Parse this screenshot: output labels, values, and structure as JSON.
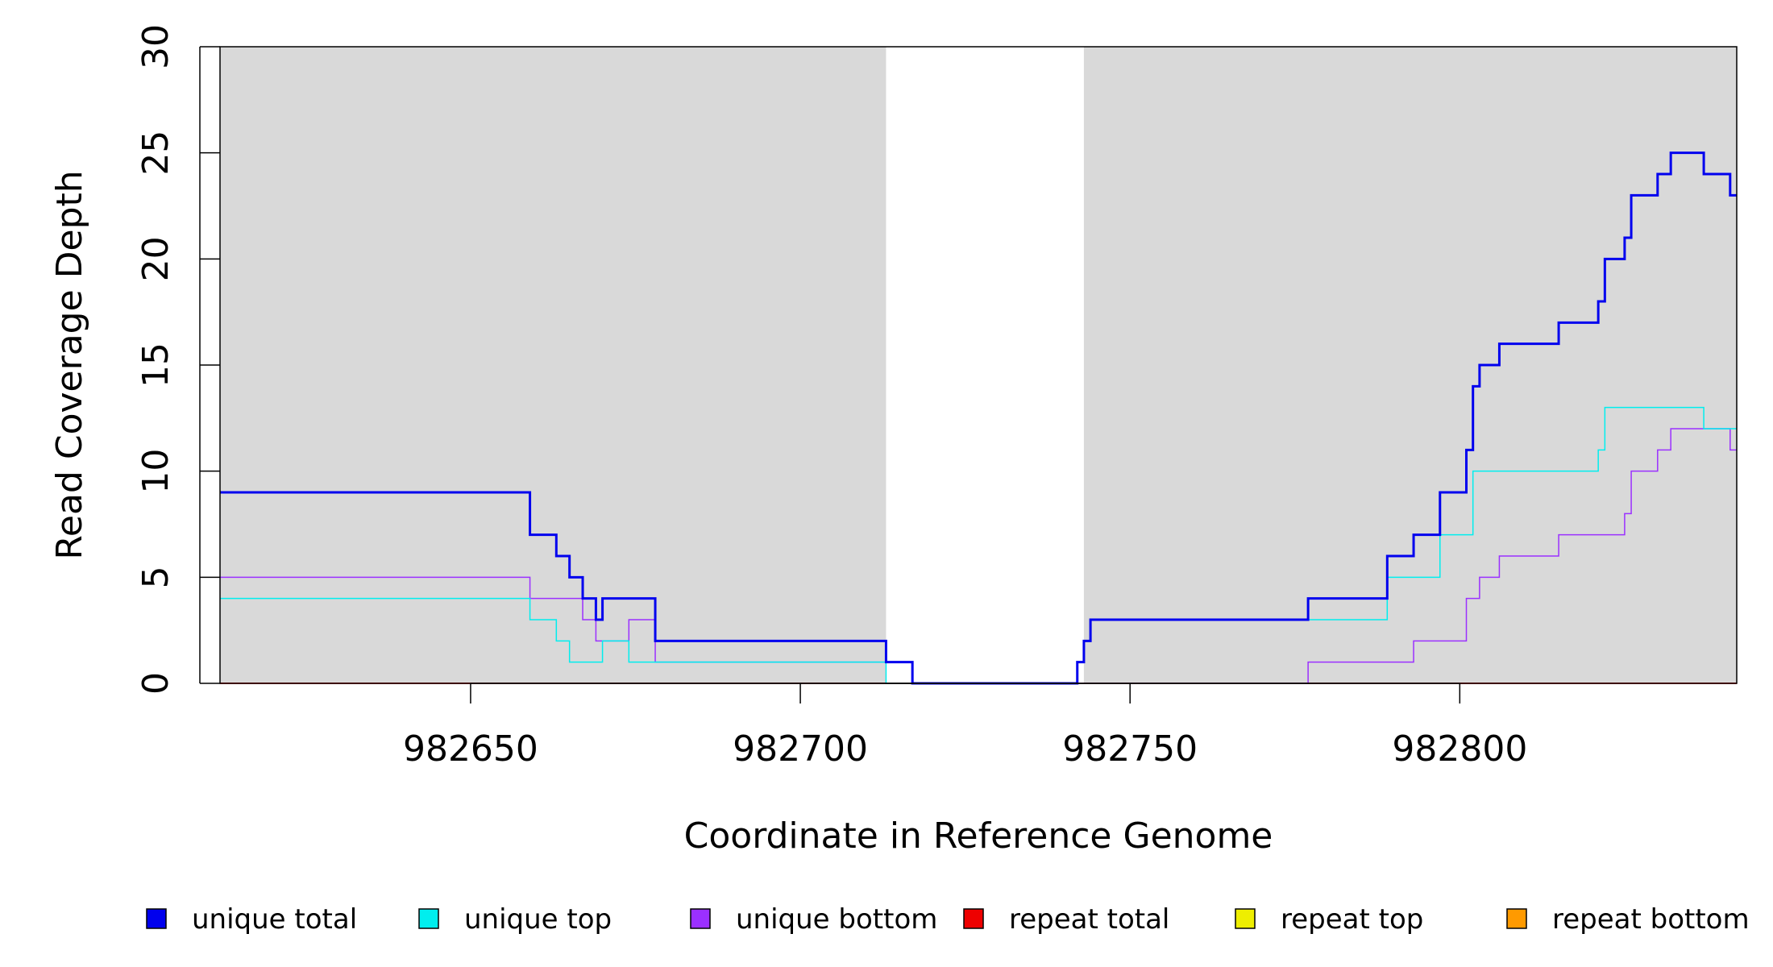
{
  "chart_data": {
    "type": "line",
    "step": true,
    "title": "",
    "xlabel": "Coordinate in Reference Genome",
    "ylabel": "Read Coverage Depth",
    "xlim": [
      982612,
      982842
    ],
    "ylim": [
      0,
      30
    ],
    "x_ticks": [
      982650,
      982700,
      982750,
      982800
    ],
    "y_ticks": [
      0,
      5,
      10,
      15,
      20,
      25,
      30
    ],
    "shaded_regions": [
      {
        "from": 982612,
        "to": 982713,
        "color": "#d9d9d9"
      },
      {
        "from": 982743,
        "to": 982842,
        "color": "#d9d9d9"
      }
    ],
    "legend_position": "bottom",
    "series": [
      {
        "name": "unique total",
        "color": "#0000ee",
        "width": 3,
        "points": [
          [
            982612,
            9
          ],
          [
            982659,
            9
          ],
          [
            982659,
            7
          ],
          [
            982663,
            7
          ],
          [
            982663,
            6
          ],
          [
            982665,
            6
          ],
          [
            982665,
            5
          ],
          [
            982667,
            5
          ],
          [
            982667,
            4
          ],
          [
            982669,
            4
          ],
          [
            982669,
            3
          ],
          [
            982670,
            3
          ],
          [
            982670,
            4
          ],
          [
            982678,
            4
          ],
          [
            982678,
            2
          ],
          [
            982713,
            2
          ],
          [
            982713,
            1
          ],
          [
            982717,
            1
          ],
          [
            982717,
            0
          ],
          [
            982742,
            0
          ],
          [
            982742,
            1
          ],
          [
            982743,
            1
          ],
          [
            982743,
            2
          ],
          [
            982744,
            2
          ],
          [
            982744,
            3
          ],
          [
            982777,
            3
          ],
          [
            982777,
            4
          ],
          [
            982789,
            4
          ],
          [
            982789,
            6
          ],
          [
            982793,
            6
          ],
          [
            982793,
            7
          ],
          [
            982797,
            7
          ],
          [
            982797,
            9
          ],
          [
            982801,
            9
          ],
          [
            982801,
            11
          ],
          [
            982802,
            11
          ],
          [
            982802,
            14
          ],
          [
            982803,
            14
          ],
          [
            982803,
            15
          ],
          [
            982806,
            15
          ],
          [
            982806,
            16
          ],
          [
            982815,
            16
          ],
          [
            982815,
            17
          ],
          [
            982821,
            17
          ],
          [
            982821,
            18
          ],
          [
            982822,
            18
          ],
          [
            982822,
            20
          ],
          [
            982825,
            20
          ],
          [
            982825,
            21
          ],
          [
            982826,
            21
          ],
          [
            982826,
            23
          ],
          [
            982830,
            23
          ],
          [
            982830,
            24
          ],
          [
            982832,
            24
          ],
          [
            982832,
            25
          ],
          [
            982837,
            25
          ],
          [
            982837,
            24
          ],
          [
            982841,
            24
          ],
          [
            982841,
            23
          ],
          [
            982842,
            23
          ]
        ]
      },
      {
        "name": "unique top",
        "color": "#00eeee",
        "width": 1.5,
        "points": [
          [
            982612,
            4
          ],
          [
            982659,
            4
          ],
          [
            982659,
            3
          ],
          [
            982663,
            3
          ],
          [
            982663,
            2
          ],
          [
            982665,
            2
          ],
          [
            982665,
            1
          ],
          [
            982670,
            1
          ],
          [
            982670,
            2
          ],
          [
            982674,
            2
          ],
          [
            982674,
            1
          ],
          [
            982713,
            1
          ],
          [
            982713,
            0
          ],
          [
            982742,
            0
          ],
          [
            982742,
            1
          ],
          [
            982743,
            1
          ],
          [
            982743,
            2
          ],
          [
            982744,
            2
          ],
          [
            982744,
            3
          ],
          [
            982789,
            3
          ],
          [
            982789,
            5
          ],
          [
            982797,
            5
          ],
          [
            982797,
            7
          ],
          [
            982802,
            7
          ],
          [
            982802,
            10
          ],
          [
            982821,
            10
          ],
          [
            982821,
            11
          ],
          [
            982822,
            11
          ],
          [
            982822,
            13
          ],
          [
            982837,
            13
          ],
          [
            982837,
            12
          ],
          [
            982842,
            12
          ]
        ]
      },
      {
        "name": "unique bottom",
        "color": "#9b30ff",
        "width": 1.5,
        "points": [
          [
            982612,
            5
          ],
          [
            982659,
            5
          ],
          [
            982659,
            4
          ],
          [
            982667,
            4
          ],
          [
            982667,
            3
          ],
          [
            982669,
            3
          ],
          [
            982669,
            2
          ],
          [
            982674,
            2
          ],
          [
            982674,
            3
          ],
          [
            982678,
            3
          ],
          [
            982678,
            1
          ],
          [
            982717,
            1
          ],
          [
            982717,
            0
          ],
          [
            982777,
            0
          ],
          [
            982777,
            1
          ],
          [
            982793,
            1
          ],
          [
            982793,
            2
          ],
          [
            982801,
            2
          ],
          [
            982801,
            4
          ],
          [
            982803,
            4
          ],
          [
            982803,
            5
          ],
          [
            982806,
            5
          ],
          [
            982806,
            6
          ],
          [
            982815,
            6
          ],
          [
            982815,
            7
          ],
          [
            982825,
            7
          ],
          [
            982825,
            8
          ],
          [
            982826,
            8
          ],
          [
            982826,
            10
          ],
          [
            982830,
            10
          ],
          [
            982830,
            11
          ],
          [
            982832,
            11
          ],
          [
            982832,
            12
          ],
          [
            982841,
            12
          ],
          [
            982841,
            11
          ],
          [
            982842,
            11
          ]
        ]
      },
      {
        "name": "repeat total",
        "color": "#ee0000",
        "width": 2,
        "points": [
          [
            982612,
            0
          ],
          [
            982842,
            0
          ]
        ]
      },
      {
        "name": "repeat top",
        "color": "#eeee00",
        "width": 2,
        "points": [
          [
            982612,
            0
          ],
          [
            982842,
            0
          ]
        ]
      },
      {
        "name": "repeat bottom",
        "color": "#ff9a00",
        "width": 2,
        "points": [
          [
            982612,
            0
          ],
          [
            982842,
            0
          ]
        ]
      }
    ]
  }
}
